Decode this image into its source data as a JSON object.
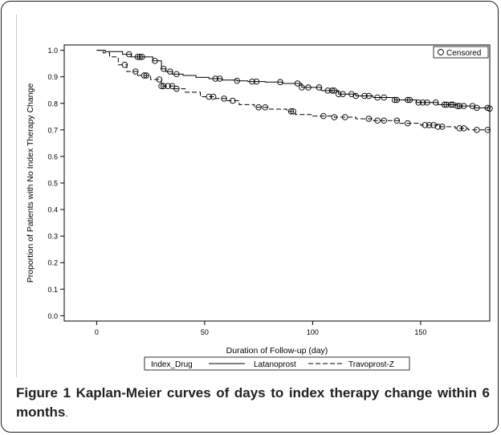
{
  "chart_data": {
    "type": "line",
    "title": "",
    "xlabel": "Duration of Follow-up (day)",
    "ylabel": "Proportion of Patients with No Index Therapy Change",
    "xlim": [
      -15,
      182
    ],
    "ylim": [
      -0.02,
      1.02
    ],
    "x_ticks": [
      0,
      50,
      100,
      150
    ],
    "x_tick_labels": [
      "0",
      "50",
      "100",
      "150"
    ],
    "y_ticks": [
      0.0,
      0.1,
      0.2,
      0.3,
      0.4,
      0.5,
      0.6,
      0.7,
      0.8,
      0.9,
      1.0
    ],
    "y_tick_labels": [
      "0.0",
      "0.1",
      "0.2",
      "0.3",
      "0.4",
      "0.5",
      "0.6",
      "0.7",
      "0.8",
      "0.9",
      "1.0"
    ],
    "grid": false,
    "step": true,
    "censored_legend_label": "Censored",
    "legend_title": "Index_Drug",
    "legend_position": "bottom",
    "series": [
      {
        "name": "Latanoprost",
        "dash": "solid",
        "x": [
          0,
          4,
          12,
          16,
          26,
          30,
          32,
          35,
          40,
          46,
          52,
          58,
          65,
          70,
          78,
          86,
          95,
          104,
          112,
          120,
          128,
          138,
          148,
          158,
          167,
          175,
          182
        ],
        "y": [
          1.0,
          0.995,
          0.985,
          0.975,
          0.96,
          0.93,
          0.92,
          0.91,
          0.905,
          0.898,
          0.893,
          0.888,
          0.885,
          0.882,
          0.88,
          0.875,
          0.86,
          0.848,
          0.835,
          0.828,
          0.822,
          0.813,
          0.803,
          0.795,
          0.79,
          0.783,
          0.78
        ],
        "censored_x": [
          15,
          19,
          20,
          21,
          27,
          31,
          34,
          37,
          55,
          57,
          65,
          72,
          74,
          85,
          93,
          95,
          98,
          103,
          107,
          109,
          110,
          112,
          114,
          118,
          120,
          124,
          126,
          130,
          133,
          138,
          139,
          144,
          145,
          149,
          151,
          153,
          157,
          161,
          162,
          164,
          165,
          167,
          168,
          170,
          174,
          176,
          181,
          182
        ]
      },
      {
        "name": "Travoprost-Z",
        "dash": "dashed",
        "x": [
          0,
          3,
          6,
          10,
          14,
          19,
          25,
          30,
          36,
          41,
          48,
          55,
          60,
          66,
          73,
          80,
          88,
          92,
          100,
          110,
          120,
          128,
          140,
          150,
          158,
          166,
          172,
          182
        ],
        "y": [
          1.0,
          0.99,
          0.975,
          0.945,
          0.92,
          0.905,
          0.89,
          0.865,
          0.855,
          0.842,
          0.825,
          0.818,
          0.81,
          0.795,
          0.785,
          0.778,
          0.77,
          0.758,
          0.752,
          0.748,
          0.742,
          0.735,
          0.725,
          0.718,
          0.712,
          0.706,
          0.7,
          0.695
        ],
        "censored_x": [
          13,
          18,
          22,
          23,
          29,
          30,
          31,
          33,
          35,
          37,
          52,
          54,
          59,
          63,
          75,
          78,
          90,
          91,
          105,
          110,
          115,
          126,
          130,
          133,
          139,
          144,
          152,
          154,
          156,
          158,
          160,
          168,
          170,
          176,
          181
        ]
      }
    ]
  },
  "caption": {
    "label": "Figure 1",
    "text": "Kaplan-Meier curves of days to index therapy change within 6 months",
    "end": "."
  }
}
